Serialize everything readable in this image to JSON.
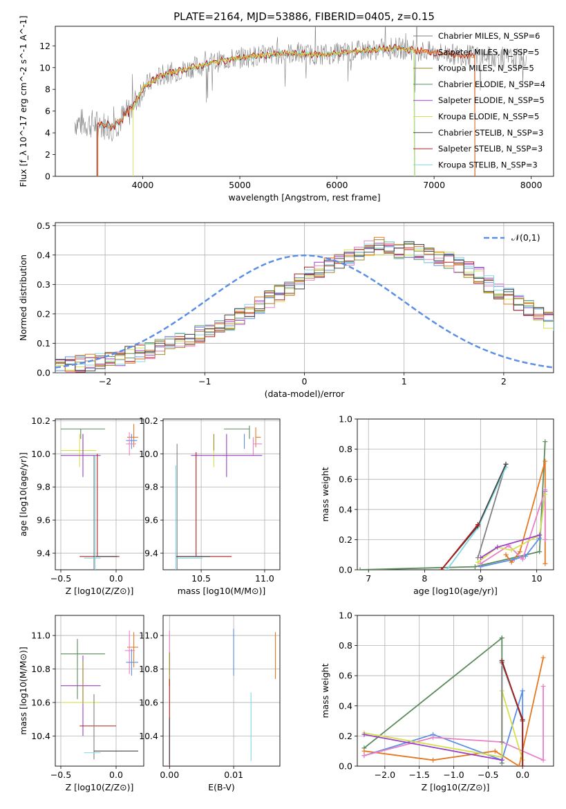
{
  "title": "PLATE=2164, MJD=53886, FIBERID=0405, z=0.15",
  "colors": {
    "Chabrier MILES": "#7f7f7f",
    "Salpeter MILES": "#e6771f",
    "Kroupa MILES": "#9a8a2a",
    "Chabrier ELODIE": "#5a8a5a",
    "Salpeter ELODIE": "#9b3fc4",
    "Kroupa ELODIE": "#d4e04a",
    "Chabrier STELIB": "#444444",
    "Salpeter STELIB": "#b01c1c",
    "Kroupa STELIB": "#7fd8e0",
    "blue": "#5b8ee6",
    "pink": "#e97fc8"
  },
  "chart_data": [
    {
      "id": "spectrum",
      "type": "line",
      "xlabel": "wavelength [Angstrom, rest frame]",
      "ylabel": "Flux [f_λ 10^-17 erg cm^-2 s^-1 A^-1]",
      "xlim": [
        3100,
        8230
      ],
      "ylim": [
        0,
        13.8
      ],
      "xticks": [
        4000,
        5000,
        6000,
        7000,
        8000
      ],
      "yticks": [
        0,
        2,
        4,
        6,
        8,
        10,
        12
      ],
      "legend": [
        "Chabrier MILES, N_SSP=6",
        "Salpeter MILES, N_SSP=5",
        "Kroupa MILES, N_SSP=5",
        "Chabrier ELODIE, N_SSP=4",
        "Salpeter ELODIE, N_SSP=5",
        "Kroupa ELODIE, N_SSP=5",
        "Chabrier STELIB, N_SSP=3",
        "Salpeter STELIB, N_SSP=3",
        "Kroupa STELIB, N_SSP=3"
      ],
      "legend_placement": "right",
      "continuum": {
        "x": [
          3300,
          3500,
          3700,
          3900,
          4000,
          4200,
          4500,
          4800,
          5000,
          5200,
          5500,
          5800,
          6000,
          6300,
          6600,
          6800,
          7000,
          7200,
          7400,
          7600,
          7900
        ],
        "y": [
          5.0,
          4.8,
          4.6,
          6.3,
          8.2,
          9.3,
          10.0,
          10.6,
          10.9,
          11.1,
          11.3,
          11.2,
          11.3,
          11.6,
          11.8,
          11.6,
          11.4,
          11.2,
          11.1,
          11.0,
          10.8
        ]
      },
      "data_range_x": [
        3300,
        7950
      ],
      "model_ranges": {
        "Salpeter STELIB": [
          3530,
          7420
        ],
        "Kroupa STELIB": [
          3530,
          6800
        ],
        "Kroupa ELODIE": [
          3900,
          6800
        ],
        "Salpeter MILES": [
          3540,
          7420
        ]
      }
    },
    {
      "id": "residuals",
      "type": "step",
      "xlabel": "(data-model)/error",
      "ylabel": "Normed distribution",
      "xlim": [
        -2.5,
        2.5
      ],
      "ylim": [
        0,
        0.51
      ],
      "xticks": [
        -2,
        -1,
        0,
        1,
        2
      ],
      "yticks": [
        0.0,
        0.1,
        0.2,
        0.3,
        0.4,
        0.5
      ],
      "legend": [
        "𝒩(0,1)"
      ],
      "legend_placement": "top-right",
      "bin_width": 0.1,
      "mean_hist": [
        0.02,
        0.025,
        0.03,
        0.035,
        0.04,
        0.045,
        0.05,
        0.06,
        0.065,
        0.075,
        0.085,
        0.095,
        0.105,
        0.115,
        0.13,
        0.14,
        0.155,
        0.17,
        0.19,
        0.21,
        0.23,
        0.25,
        0.27,
        0.29,
        0.31,
        0.33,
        0.35,
        0.37,
        0.38,
        0.39,
        0.41,
        0.42,
        0.43,
        0.43,
        0.41,
        0.42,
        0.41,
        0.4,
        0.39,
        0.38,
        0.37,
        0.35,
        0.33,
        0.3,
        0.28,
        0.26,
        0.24,
        0.22,
        0.2,
        0.18,
        0.16,
        0.14,
        0.12,
        0.11,
        0.095,
        0.08,
        0.065,
        0.055,
        0.045,
        0.035,
        0.03,
        0.028,
        0.025,
        0.03,
        0.025
      ],
      "hist_start": -2.5
    },
    {
      "id": "age-vs-Z",
      "type": "errorbar",
      "xlabel": "Z [log10(Z/Z⊙)]",
      "ylabel": "age  [log10(age/yr)]",
      "xlim": [
        -0.55,
        0.25
      ],
      "ylim": [
        9.3,
        10.21
      ],
      "xticks": [
        -0.5,
        0.0
      ],
      "yticks": [
        9.4,
        9.6,
        9.8,
        10.0,
        10.2
      ],
      "points": [
        {
          "m": "Chabrier ELODIE",
          "x": -0.32,
          "xerr": [
            0.18,
            0.22
          ],
          "y": 10.15,
          "yerr": [
            0.06,
            0.0
          ]
        },
        {
          "m": "Salpeter MILES",
          "x": 0.16,
          "xerr": [
            0.06,
            0.04
          ],
          "y": 10.1,
          "yerr": [
            0.06,
            0.08
          ]
        },
        {
          "m": "blue",
          "x": 0.14,
          "xerr": [
            0.05,
            0.05
          ],
          "y": 10.08,
          "yerr": [
            0.05,
            0.04
          ]
        },
        {
          "m": "pink",
          "x": 0.12,
          "xerr": [
            0.03,
            0.06
          ],
          "y": 10.06,
          "yerr": [
            0.07,
            0.07
          ]
        },
        {
          "m": "Kroupa ELODIE",
          "x": -0.33,
          "xerr": [
            0.17,
            0.15
          ],
          "y": 10.02,
          "yerr": [
            0.1,
            0.1
          ]
        },
        {
          "m": "Kroupa MILES",
          "x": -0.3,
          "xerr": [
            0.0,
            0.0
          ],
          "y": 10.0,
          "yerr": [
            0.0,
            0.12
          ]
        },
        {
          "m": "Salpeter ELODIE",
          "x": -0.3,
          "xerr": [
            0.2,
            0.16
          ],
          "y": 9.99,
          "yerr": [
            0.13,
            0.13
          ]
        },
        {
          "m": "Chabrier MILES",
          "x": -0.2,
          "xerr": [
            0.0,
            0.0
          ],
          "y": 9.99,
          "yerr": [
            0.69,
            0.0
          ]
        },
        {
          "m": "Salpeter STELIB",
          "x": -0.17,
          "xerr": [
            0.16,
            0.2
          ],
          "y": 9.38,
          "yerr": [
            0.0,
            0.62
          ]
        },
        {
          "m": "Chabrier STELIB",
          "x": -0.2,
          "xerr": [
            0.0,
            0.21
          ],
          "y": 9.38,
          "yerr": [
            0.0,
            0.0
          ]
        },
        {
          "m": "Kroupa STELIB",
          "x": -0.19,
          "xerr": [
            0.1,
            0.05
          ],
          "y": 9.37,
          "yerr": [
            0.07,
            0.62
          ]
        }
      ]
    },
    {
      "id": "age-vs-mass",
      "type": "errorbar",
      "xlabel": "mass [log10(M/M⊙)]",
      "ylabel": "",
      "xlim": [
        10.2,
        11.12
      ],
      "ylim": [
        9.3,
        10.21
      ],
      "xticks": [
        10.5,
        11.0
      ],
      "yticks": [
        9.4,
        9.6,
        9.8,
        10.0,
        10.2
      ],
      "points": [
        {
          "m": "Chabrier ELODIE",
          "x": 10.88,
          "xerr": [
            0.2,
            0.0
          ],
          "y": 10.15,
          "yerr": [
            0.06,
            0.02
          ]
        },
        {
          "m": "Salpeter MILES",
          "x": 10.93,
          "xerr": [
            0.0,
            0.04
          ],
          "y": 10.1,
          "yerr": [
            0.06,
            0.06
          ]
        },
        {
          "m": "blue",
          "x": 10.84,
          "xerr": [
            0.0,
            0.0
          ],
          "y": 10.08,
          "yerr": [
            0.05,
            0.04
          ]
        },
        {
          "m": "pink",
          "x": 10.91,
          "xerr": [
            0.0,
            0.07
          ],
          "y": 10.06,
          "yerr": [
            0.07,
            0.04
          ]
        },
        {
          "m": "Kroupa ELODIE",
          "x": 10.6,
          "xerr": [
            0.0,
            0.0
          ],
          "y": 10.02,
          "yerr": [
            0.1,
            0.08
          ]
        },
        {
          "m": "Kroupa MILES",
          "x": 10.6,
          "xerr": [
            0.0,
            0.0
          ],
          "y": 10.02,
          "yerr": [
            0.0,
            0.1
          ]
        },
        {
          "m": "Salpeter ELODIE",
          "x": 10.7,
          "xerr": [
            0.28,
            0.28
          ],
          "y": 9.99,
          "yerr": [
            0.13,
            0.13
          ]
        },
        {
          "m": "Chabrier MILES",
          "x": 10.31,
          "xerr": [
            0.0,
            0.0
          ],
          "y": 9.99,
          "yerr": [
            0.69,
            0.07
          ]
        },
        {
          "m": "Salpeter STELIB",
          "x": 10.46,
          "xerr": [
            0.16,
            0.28
          ],
          "y": 9.38,
          "yerr": [
            0.0,
            0.63
          ]
        },
        {
          "m": "Chabrier STELIB",
          "x": 10.31,
          "xerr": [
            0.0,
            0.26
          ],
          "y": 9.38,
          "yerr": [
            0.0,
            0.0
          ]
        },
        {
          "m": "Kroupa STELIB",
          "x": 10.3,
          "xerr": [
            0.0,
            0.21
          ],
          "y": 9.37,
          "yerr": [
            0.07,
            0.56
          ]
        }
      ]
    },
    {
      "id": "weight-vs-age",
      "type": "line",
      "xlabel": "age  [log10(age/yr)]",
      "ylabel": "mass weight",
      "xlim": [
        6.8,
        10.3
      ],
      "ylim": [
        0,
        1.0
      ],
      "xticks": [
        7,
        8,
        9,
        10
      ],
      "yticks": [
        0.0,
        0.2,
        0.4,
        0.6,
        0.8,
        1.0
      ],
      "series": [
        {
          "m": "Chabrier ELODIE",
          "x": [
            6.85,
            8.9,
            10.05,
            10.15
          ],
          "y": [
            0.0,
            0.02,
            0.12,
            0.85
          ]
        },
        {
          "m": "Salpeter MILES",
          "x": [
            9.45,
            9.55,
            9.7,
            10.15,
            10.15
          ],
          "y": [
            0.1,
            0.05,
            0.12,
            0.72,
            0.04
          ]
        },
        {
          "m": "blue",
          "x": [
            9.0,
            9.6,
            9.8,
            10.05,
            10.15
          ],
          "y": [
            0.02,
            0.07,
            0.09,
            0.21,
            0.52
          ]
        },
        {
          "m": "pink",
          "x": [
            9.0,
            9.5,
            9.75,
            10.15,
            10.15
          ],
          "y": [
            0.04,
            0.16,
            0.07,
            0.53,
            0.2
          ]
        },
        {
          "m": "Kroupa ELODIE",
          "x": [
            8.95,
            9.3,
            9.55,
            10.05,
            10.15
          ],
          "y": [
            0.05,
            0.15,
            0.13,
            0.23,
            0.5
          ]
        },
        {
          "m": "Salpeter ELODIE",
          "x": [
            9.0,
            9.3,
            10.05
          ],
          "y": [
            0.08,
            0.15,
            0.23
          ]
        },
        {
          "m": "Chabrier MILES",
          "x": [
            8.95,
            9.45
          ],
          "y": [
            0.08,
            0.7
          ]
        },
        {
          "m": "Kroupa STELIB",
          "x": [
            8.4,
            8.95,
            9.45
          ],
          "y": [
            0.0,
            0.28,
            0.68
          ]
        },
        {
          "m": "Chabrier STELIB",
          "x": [
            8.3,
            8.95,
            9.45
          ],
          "y": [
            0.0,
            0.29,
            0.7
          ]
        },
        {
          "m": "Salpeter STELIB",
          "x": [
            8.3,
            8.95
          ],
          "y": [
            0.0,
            0.3
          ]
        }
      ]
    },
    {
      "id": "mass-vs-Z",
      "type": "errorbar",
      "xlabel": "Z [log10(Z/Z⊙)]",
      "ylabel": "mass [log10(M/M⊙)]",
      "xlim": [
        -0.55,
        0.25
      ],
      "ylim": [
        10.22,
        11.12
      ],
      "xticks": [
        -0.5,
        0.0
      ],
      "yticks": [
        10.4,
        10.6,
        10.8,
        11.0
      ],
      "points": [
        {
          "m": "Salpeter MILES",
          "x": 0.16,
          "xerr": [
            0.06,
            0.04
          ],
          "y": 10.93,
          "yerr": [
            0.12,
            0.09
          ]
        },
        {
          "m": "pink",
          "x": 0.12,
          "xerr": [
            0.04,
            0.05
          ],
          "y": 10.91,
          "yerr": [
            0.14,
            0.12
          ]
        },
        {
          "m": "Chabrier ELODIE",
          "x": -0.35,
          "xerr": [
            0.15,
            0.25
          ],
          "y": 10.89,
          "yerr": [
            0.27,
            0.09
          ]
        },
        {
          "m": "blue",
          "x": 0.14,
          "xerr": [
            0.05,
            0.06
          ],
          "y": 10.84,
          "yerr": [
            0.08,
            0.08
          ]
        },
        {
          "m": "Salpeter ELODIE",
          "x": -0.3,
          "xerr": [
            0.2,
            0.16
          ],
          "y": 10.7,
          "yerr": [
            0.3,
            0.18
          ]
        },
        {
          "m": "Kroupa ELODIE",
          "x": -0.32,
          "xerr": [
            0.18,
            0.17
          ],
          "y": 10.6,
          "yerr": [
            0.0,
            0.0
          ]
        },
        {
          "m": "Kroupa MILES",
          "x": -0.3,
          "xerr": [
            0.0,
            0.0
          ],
          "y": 10.6,
          "yerr": [
            0.0,
            0.25
          ]
        },
        {
          "m": "Salpeter STELIB",
          "x": -0.17,
          "xerr": [
            0.16,
            0.17
          ],
          "y": 10.46,
          "yerr": [
            0.0,
            0.0
          ]
        },
        {
          "m": "Chabrier MILES",
          "x": -0.2,
          "xerr": [
            0.0,
            0.0
          ],
          "y": 10.31,
          "yerr": [
            0.05,
            0.34
          ]
        },
        {
          "m": "Chabrier STELIB",
          "x": -0.2,
          "xerr": [
            0.0,
            0.4
          ],
          "y": 10.31,
          "yerr": [
            0.0,
            0.0
          ]
        },
        {
          "m": "Kroupa STELIB",
          "x": -0.19,
          "xerr": [
            0.1,
            0.05
          ],
          "y": 10.3,
          "yerr": [
            0.0,
            0.0
          ]
        }
      ]
    },
    {
      "id": "mass-vs-EBV",
      "type": "errorbar",
      "xlabel": "E(B-V)",
      "ylabel": "",
      "xlim": [
        -0.001,
        0.0172
      ],
      "ylim": [
        10.22,
        11.12
      ],
      "xticks": [
        0.0,
        0.01
      ],
      "yticks": [
        10.4,
        10.6,
        10.8,
        11.0
      ],
      "points": [
        {
          "m": "pink",
          "x": 0.0,
          "y": 10.91,
          "yerr": [
            0.14,
            0.12
          ]
        },
        {
          "m": "Kroupa MILES",
          "x": 0.0,
          "y": 10.8,
          "yerr": [
            0.1,
            0.1
          ]
        },
        {
          "m": "Salpeter STELIB",
          "x": 0.0,
          "y": 10.46,
          "yerr": [
            0.3,
            0.28
          ]
        },
        {
          "m": "Chabrier STELIB",
          "x": 0.0,
          "y": 10.31,
          "yerr": [
            0.08,
            0.2
          ]
        },
        {
          "m": "blue",
          "x": 0.01,
          "y": 10.84,
          "yerr": [
            0.08,
            0.2
          ]
        },
        {
          "m": "Kroupa STELIB",
          "x": 0.0127,
          "y": 10.45,
          "yerr": [
            0.2,
            0.21
          ]
        },
        {
          "m": "Salpeter MILES",
          "x": 0.0165,
          "y": 10.88,
          "yerr": [
            0.14,
            0.14
          ]
        }
      ]
    },
    {
      "id": "weight-vs-Z",
      "type": "line",
      "xlabel": "Z [log10(Z/Z⊙)]",
      "ylabel": "mass weight",
      "xlim": [
        -2.4,
        0.45
      ],
      "ylim": [
        0,
        1.0
      ],
      "xticks": [
        -2.0,
        -1.5,
        -1.0,
        -0.5,
        0.0
      ],
      "yticks": [
        0.0,
        0.2,
        0.4,
        0.6,
        0.8,
        1.0
      ],
      "series": [
        {
          "m": "Chabrier ELODIE",
          "x": [
            -2.3,
            -0.3,
            -0.3,
            -0.3
          ],
          "y": [
            0.12,
            0.85,
            0.02,
            0.85
          ]
        },
        {
          "m": "Salpeter MILES",
          "x": [
            -2.3,
            -1.3,
            -0.4,
            -0.05,
            0.3
          ],
          "y": [
            0.1,
            0.04,
            0.1,
            0.0,
            0.72
          ]
        },
        {
          "m": "blue",
          "x": [
            -2.3,
            -1.3,
            -0.3,
            0.0,
            0.0
          ],
          "y": [
            0.07,
            0.21,
            0.04,
            0.5,
            0.0
          ]
        },
        {
          "m": "pink",
          "x": [
            -2.3,
            -1.3,
            -0.3,
            0.3,
            0.3
          ],
          "y": [
            0.07,
            0.19,
            0.16,
            0.04,
            0.53
          ]
        },
        {
          "m": "Kroupa ELODIE",
          "x": [
            -2.3,
            -0.3,
            -0.3,
            0.0
          ],
          "y": [
            0.22,
            0.06,
            0.5,
            0.04
          ]
        },
        {
          "m": "Salpeter ELODIE",
          "x": [
            -2.3,
            -0.3
          ],
          "y": [
            0.21,
            0.04
          ]
        },
        {
          "m": "Chabrier MILES",
          "x": [
            -0.3,
            -0.3
          ],
          "y": [
            0.7,
            0.16
          ]
        },
        {
          "m": "Kroupa STELIB",
          "x": [
            -0.3,
            0.0,
            0.0
          ],
          "y": [
            0.68,
            0.3,
            0.0
          ]
        },
        {
          "m": "Chabrier STELIB",
          "x": [
            -0.3,
            0.0,
            0.0
          ],
          "y": [
            0.7,
            0.3,
            0.0
          ]
        },
        {
          "m": "Salpeter STELIB",
          "x": [
            -0.3,
            0.0,
            0.0
          ],
          "y": [
            0.69,
            0.31,
            0.0
          ]
        }
      ]
    }
  ]
}
